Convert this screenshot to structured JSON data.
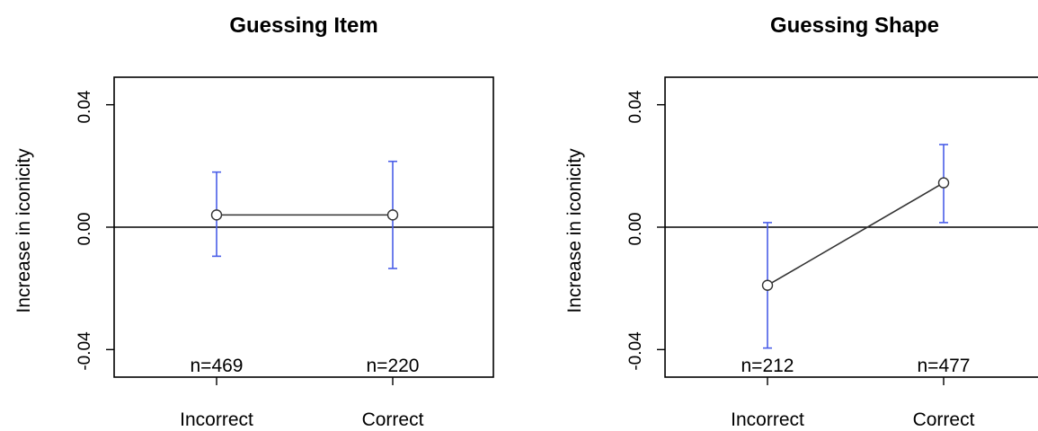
{
  "chart_data": [
    {
      "type": "line",
      "title": "Guessing Item",
      "ylabel": "Increase in iconicity",
      "xlabel": "",
      "categories": [
        "Incorrect",
        "Correct"
      ],
      "yticks": [
        "-0.04",
        "0.00",
        "0.04"
      ],
      "ylim": [
        -0.049,
        0.049
      ],
      "reference_line": 0,
      "series": [
        {
          "values": [
            0.004,
            0.004
          ],
          "ci_lower": [
            -0.0095,
            -0.0135
          ],
          "ci_upper": [
            0.018,
            0.0215
          ],
          "n_labels": [
            "n=469",
            "n=220"
          ]
        }
      ],
      "grid": false,
      "colors": {
        "errorbar": "#4a5ee8",
        "line": "#333333",
        "axis": "#000000"
      }
    },
    {
      "type": "line",
      "title": "Guessing Shape",
      "ylabel": "Increase in iconicity",
      "xlabel": "",
      "categories": [
        "Incorrect",
        "Correct"
      ],
      "yticks": [
        "-0.04",
        "0.00",
        "0.04"
      ],
      "ylim": [
        -0.049,
        0.049
      ],
      "reference_line": 0,
      "series": [
        {
          "values": [
            -0.019,
            0.0145
          ],
          "ci_lower": [
            -0.0395,
            0.0015
          ],
          "ci_upper": [
            0.0015,
            0.027
          ],
          "n_labels": [
            "n=212",
            "n=477"
          ]
        }
      ],
      "grid": false,
      "colors": {
        "errorbar": "#4a5ee8",
        "line": "#333333",
        "axis": "#000000"
      }
    }
  ]
}
